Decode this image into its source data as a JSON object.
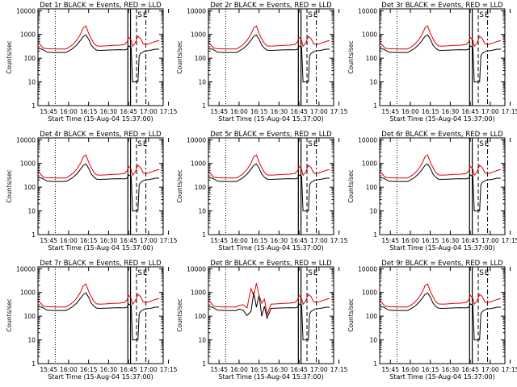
{
  "colors": {
    "events": "#000000",
    "lld": "#e00000",
    "background": "#ffffff",
    "axes": "#000000"
  },
  "chart_data": [
    {
      "type": "line",
      "title": "Det 1r BLACK = Events, RED = LLD",
      "xlabel": "Start Time (15-Aug-04 15:37:00)",
      "ylabel": "Counts/sec",
      "yscale": "log",
      "ylim": [
        1,
        12000
      ],
      "xlim": [
        "15:37",
        "17:20"
      ],
      "x_ticks": [
        "15:45",
        "16:00",
        "16:15",
        "16:30",
        "16:45",
        "17:00",
        "17:15"
      ],
      "y_ticks": [
        "1",
        "10",
        "100",
        "1000",
        "10000"
      ],
      "annotations": [
        "S",
        "E"
      ],
      "series": [
        {
          "name": "Events",
          "color": "#000000"
        },
        {
          "name": "LLD",
          "color": "#e00000"
        }
      ]
    },
    {
      "type": "line",
      "title": "Det 2r BLACK = Events, RED = LLD",
      "xlabel": "Start Time (15-Aug-04 15:37:00)",
      "ylabel": "Counts/sec",
      "yscale": "log",
      "ylim": [
        1,
        12000
      ],
      "xlim": [
        "15:37",
        "17:20"
      ],
      "x_ticks": [
        "15:45",
        "16:00",
        "16:15",
        "16:30",
        "16:45",
        "17:00",
        "17:15"
      ],
      "y_ticks": [
        "1",
        "10",
        "100",
        "1000",
        "10000"
      ],
      "annotations": [
        "S",
        "E"
      ],
      "series": [
        {
          "name": "Events",
          "color": "#000000"
        },
        {
          "name": "LLD",
          "color": "#e00000"
        }
      ]
    },
    {
      "type": "line",
      "title": "Det 3r BLACK = Events, RED = LLD",
      "xlabel": "Start Time (15-Aug-04 15:37:00)",
      "ylabel": "Counts/sec",
      "yscale": "log",
      "ylim": [
        1,
        12000
      ],
      "xlim": [
        "15:37",
        "17:20"
      ],
      "x_ticks": [
        "15:45",
        "16:00",
        "16:15",
        "16:30",
        "16:45",
        "17:00",
        "17:15"
      ],
      "y_ticks": [
        "1",
        "10",
        "100",
        "1000",
        "10000"
      ],
      "annotations": [
        "S",
        "E"
      ],
      "series": [
        {
          "name": "Events",
          "color": "#000000"
        },
        {
          "name": "LLD",
          "color": "#e00000"
        }
      ]
    },
    {
      "type": "line",
      "title": "Det 4r BLACK = Events, RED = LLD",
      "xlabel": "Start Time (15-Aug-04 15:37:00)",
      "ylabel": "Counts/sec",
      "yscale": "log",
      "ylim": [
        1,
        12000
      ],
      "xlim": [
        "15:37",
        "17:20"
      ],
      "x_ticks": [
        "15:45",
        "16:00",
        "16:15",
        "16:30",
        "16:45",
        "17:00",
        "17:15"
      ],
      "y_ticks": [
        "1",
        "10",
        "100",
        "1000",
        "10000"
      ],
      "annotations": [
        "S",
        "E"
      ],
      "series": [
        {
          "name": "Events",
          "color": "#000000"
        },
        {
          "name": "LLD",
          "color": "#e00000"
        }
      ]
    },
    {
      "type": "line",
      "title": "Det 5r BLACK = Events, RED = LLD",
      "xlabel": "Start Time (15-Aug-04 15:37:00)",
      "ylabel": "Counts/sec",
      "yscale": "log",
      "ylim": [
        1,
        12000
      ],
      "xlim": [
        "15:37",
        "17:20"
      ],
      "x_ticks": [
        "15:45",
        "16:00",
        "16:15",
        "16:30",
        "16:45",
        "17:00",
        "17:15"
      ],
      "y_ticks": [
        "1",
        "10",
        "100",
        "1000",
        "10000"
      ],
      "annotations": [
        "S",
        "E"
      ],
      "series": [
        {
          "name": "Events",
          "color": "#000000"
        },
        {
          "name": "LLD",
          "color": "#e00000"
        }
      ]
    },
    {
      "type": "line",
      "title": "Det 6r BLACK = Events, RED = LLD",
      "xlabel": "Start Time (15-Aug-04 15:37:00)",
      "ylabel": "Counts/sec",
      "yscale": "log",
      "ylim": [
        1,
        12000
      ],
      "xlim": [
        "15:37",
        "17:20"
      ],
      "x_ticks": [
        "15:45",
        "16:00",
        "16:15",
        "16:30",
        "16:45",
        "17:00",
        "17:15"
      ],
      "y_ticks": [
        "1",
        "10",
        "100",
        "1000",
        "10000"
      ],
      "annotations": [
        "S",
        "E"
      ],
      "series": [
        {
          "name": "Events",
          "color": "#000000"
        },
        {
          "name": "LLD",
          "color": "#e00000"
        }
      ]
    },
    {
      "type": "line",
      "title": "Det 7r BLACK = Events, RED = LLD",
      "xlabel": "Start Time (15-Aug-04 15:37:00)",
      "ylabel": "Counts/sec",
      "yscale": "log",
      "ylim": [
        1,
        12000
      ],
      "xlim": [
        "15:37",
        "17:20"
      ],
      "x_ticks": [
        "15:45",
        "16:00",
        "16:15",
        "16:30",
        "16:45",
        "17:00",
        "17:15"
      ],
      "y_ticks": [
        "1",
        "10",
        "100",
        "1000",
        "10000"
      ],
      "annotations": [
        "S",
        "E"
      ],
      "series": [
        {
          "name": "Events",
          "color": "#000000"
        },
        {
          "name": "LLD",
          "color": "#e00000"
        }
      ]
    },
    {
      "type": "line",
      "title": "Det 8r BLACK = Events, RED = LLD",
      "xlabel": "Start Time (15-Aug-04 15:37:00)",
      "ylabel": "Counts/sec",
      "yscale": "log",
      "ylim": [
        1,
        12000
      ],
      "xlim": [
        "15:37",
        "17:20"
      ],
      "x_ticks": [
        "15:45",
        "16:00",
        "16:15",
        "16:30",
        "16:45",
        "17:00",
        "17:15"
      ],
      "y_ticks": [
        "1",
        "10",
        "100",
        "1000",
        "10000"
      ],
      "annotations": [
        "S",
        "E"
      ],
      "series": [
        {
          "name": "Events",
          "color": "#000000"
        },
        {
          "name": "LLD",
          "color": "#e00000"
        }
      ]
    },
    {
      "type": "line",
      "title": "Det 9r BLACK = Events, RED = LLD",
      "xlabel": "Start Time (15-Aug-04 15:37:00)",
      "ylabel": "Counts/sec",
      "yscale": "log",
      "ylim": [
        1,
        12000
      ],
      "xlim": [
        "15:37",
        "17:20"
      ],
      "x_ticks": [
        "15:45",
        "16:00",
        "16:15",
        "16:30",
        "16:45",
        "17:00",
        "17:15"
      ],
      "y_ticks": [
        "1",
        "10",
        "100",
        "1000",
        "10000"
      ],
      "annotations": [
        "S",
        "E"
      ],
      "series": [
        {
          "name": "Events",
          "color": "#000000"
        },
        {
          "name": "LLD",
          "color": "#e00000"
        }
      ]
    }
  ]
}
